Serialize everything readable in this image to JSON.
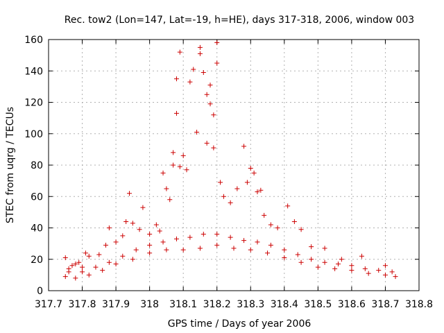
{
  "chart_data": {
    "type": "scatter",
    "title": "Rec. tow2 (Lon=147, Lat=-19, h=HE), days 317-318, 2006, window 003",
    "xlabel": "GPS time / Days of year 2006",
    "ylabel": "STEC from uqrg / TECUs",
    "xlim": [
      317.7,
      318.8
    ],
    "ylim": [
      0,
      160
    ],
    "x_ticks": [
      "317.7",
      "317.8",
      "317.9",
      "318",
      "318.1",
      "318.2",
      "318.3",
      "318.4",
      "318.5",
      "318.6",
      "318.7",
      "318.8"
    ],
    "y_ticks": [
      "0",
      "20",
      "40",
      "60",
      "80",
      "100",
      "120",
      "140",
      "160"
    ],
    "grid": true,
    "marker": "+",
    "color": "#cc0000",
    "series": [
      {
        "points": [
          [
            317.75,
            21
          ],
          [
            317.76,
            14
          ],
          [
            317.77,
            16
          ],
          [
            317.78,
            17
          ],
          [
            317.79,
            18
          ],
          [
            317.8,
            15
          ],
          [
            317.81,
            24
          ],
          [
            317.82,
            22
          ],
          [
            317.85,
            23
          ],
          [
            317.87,
            29
          ],
          [
            317.88,
            40
          ],
          [
            317.9,
            31
          ],
          [
            317.92,
            35
          ],
          [
            317.93,
            44
          ],
          [
            317.94,
            62
          ],
          [
            317.95,
            43
          ],
          [
            317.97,
            39
          ],
          [
            317.98,
            53
          ],
          [
            318.0,
            36
          ],
          [
            318.02,
            42
          ],
          [
            318.03,
            38
          ],
          [
            318.04,
            75
          ],
          [
            318.05,
            65
          ],
          [
            318.06,
            58
          ],
          [
            318.07,
            88
          ],
          [
            318.07,
            80
          ],
          [
            318.08,
            113
          ],
          [
            318.08,
            135
          ],
          [
            318.09,
            152
          ],
          [
            318.09,
            79
          ],
          [
            318.1,
            86
          ],
          [
            318.11,
            77
          ],
          [
            318.12,
            133
          ],
          [
            318.13,
            141
          ],
          [
            318.14,
            101
          ],
          [
            318.15,
            155
          ],
          [
            318.15,
            151
          ],
          [
            318.16,
            139
          ],
          [
            318.17,
            125
          ],
          [
            318.17,
            94
          ],
          [
            318.18,
            131
          ],
          [
            318.18,
            119
          ],
          [
            318.19,
            112
          ],
          [
            318.19,
            91
          ],
          [
            318.2,
            158
          ],
          [
            318.2,
            145
          ],
          [
            318.21,
            69
          ],
          [
            318.22,
            60
          ],
          [
            318.24,
            56
          ],
          [
            318.26,
            65
          ],
          [
            318.28,
            92
          ],
          [
            318.29,
            69
          ],
          [
            318.3,
            78
          ],
          [
            318.31,
            75
          ],
          [
            318.32,
            63
          ],
          [
            318.33,
            64
          ],
          [
            318.34,
            48
          ],
          [
            318.36,
            42
          ],
          [
            318.38,
            40
          ],
          [
            318.41,
            54
          ],
          [
            318.43,
            44
          ],
          [
            318.45,
            39
          ],
          [
            318.48,
            28
          ],
          [
            318.52,
            27
          ],
          [
            318.57,
            20
          ],
          [
            318.63,
            22
          ],
          [
            318.7,
            16
          ],
          [
            317.75,
            9
          ],
          [
            317.78,
            8
          ],
          [
            317.82,
            10
          ],
          [
            317.86,
            13
          ],
          [
            317.9,
            17
          ],
          [
            317.95,
            20
          ],
          [
            318.0,
            24
          ],
          [
            318.05,
            26
          ],
          [
            318.1,
            26
          ],
          [
            318.15,
            27
          ],
          [
            318.2,
            29
          ],
          [
            318.25,
            27
          ],
          [
            318.3,
            26
          ],
          [
            318.35,
            24
          ],
          [
            318.4,
            21
          ],
          [
            318.45,
            18
          ],
          [
            318.5,
            15
          ],
          [
            318.55,
            14
          ],
          [
            318.6,
            13
          ],
          [
            318.65,
            11
          ],
          [
            318.7,
            10
          ],
          [
            318.73,
            9
          ],
          [
            317.76,
            12
          ],
          [
            317.8,
            12
          ],
          [
            317.84,
            15
          ],
          [
            317.88,
            18
          ],
          [
            317.92,
            22
          ],
          [
            317.96,
            26
          ],
          [
            318.0,
            29
          ],
          [
            318.04,
            31
          ],
          [
            318.08,
            33
          ],
          [
            318.12,
            34
          ],
          [
            318.16,
            36
          ],
          [
            318.2,
            36
          ],
          [
            318.24,
            34
          ],
          [
            318.28,
            32
          ],
          [
            318.32,
            31
          ],
          [
            318.36,
            29
          ],
          [
            318.4,
            26
          ],
          [
            318.44,
            23
          ],
          [
            318.48,
            20
          ],
          [
            318.52,
            18
          ],
          [
            318.56,
            17
          ],
          [
            318.6,
            16
          ],
          [
            318.64,
            14
          ],
          [
            318.68,
            13
          ],
          [
            318.72,
            12
          ]
        ]
      }
    ]
  }
}
